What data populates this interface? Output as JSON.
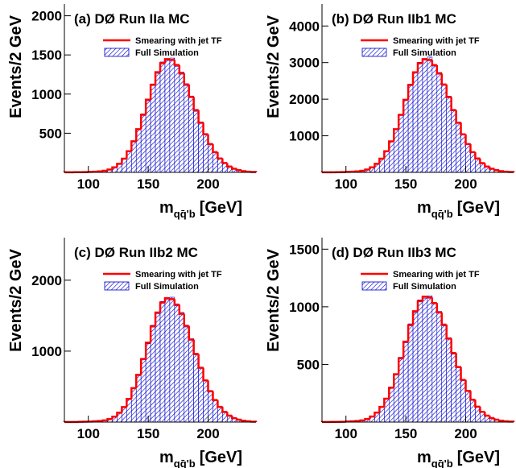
{
  "chart_data": [
    {
      "type": "histogram",
      "title": "(a) DØ Run IIa MC",
      "ylabel": "Events/2 GeV",
      "xlabel": {
        "main": "m",
        "sub": "qq̄'b",
        "unit": "[GeV]"
      },
      "bins": [
        80,
        84,
        88,
        92,
        96,
        100,
        104,
        108,
        112,
        116,
        120,
        124,
        128,
        132,
        136,
        140,
        144,
        148,
        152,
        156,
        160,
        164,
        168,
        172,
        176,
        180,
        184,
        188,
        192,
        196,
        200,
        204,
        208,
        212,
        216,
        220,
        224,
        228,
        232,
        236,
        240
      ],
      "series": [
        {
          "name": "Full Simulation",
          "color": "#0000cc",
          "style": "hatch",
          "values": [
            1,
            2,
            2,
            3,
            5,
            6,
            8,
            14,
            22,
            34,
            67,
            105,
            180,
            262,
            405,
            545,
            748,
            915,
            1130,
            1265,
            1410,
            1430,
            1460,
            1355,
            1280,
            1110,
            975,
            780,
            645,
            478,
            368,
            250,
            182,
            115,
            78,
            44,
            29,
            15,
            10,
            4
          ]
        },
        {
          "name": "Smearing with jet TF",
          "color": "#ff0000",
          "style": "step",
          "values": [
            1,
            1,
            2,
            3,
            4,
            6,
            9,
            13,
            20,
            36,
            64,
            109,
            175,
            270,
            396,
            552,
            735,
            928,
            1117,
            1279,
            1395,
            1447,
            1436,
            1372,
            1264,
            1124,
            963,
            796,
            634,
            487,
            361,
            258,
            178,
            119,
            75,
            46,
            28,
            16,
            9,
            5
          ]
        }
      ],
      "xlim": [
        80,
        240
      ],
      "xticks": [
        100,
        150,
        200
      ],
      "ylim": [
        0,
        2150
      ],
      "yticks": [
        500,
        1000,
        1500,
        2000
      ]
    },
    {
      "type": "histogram",
      "title": "(b) DØ Run IIb1 MC",
      "ylabel": "Events/2 GeV",
      "xlabel": {
        "main": "m",
        "sub": "qq̄'b",
        "unit": "[GeV]"
      },
      "bins": [
        80,
        84,
        88,
        92,
        96,
        100,
        104,
        108,
        112,
        116,
        120,
        124,
        128,
        132,
        136,
        140,
        144,
        148,
        152,
        156,
        160,
        164,
        168,
        172,
        176,
        180,
        184,
        188,
        192,
        196,
        200,
        204,
        208,
        212,
        216,
        220,
        224,
        228,
        232,
        236,
        240
      ],
      "series": [
        {
          "name": "Full Simulation",
          "color": "#0000cc",
          "style": "hatch",
          "values": [
            2,
            3,
            4,
            7,
            8,
            14,
            18,
            30,
            45,
            74,
            142,
            228,
            383,
            565,
            860,
            1165,
            1590,
            1962,
            2410,
            2710,
            3010,
            3070,
            3150,
            2905,
            2730,
            2380,
            2080,
            1680,
            1370,
            1025,
            785,
            540,
            388,
            248,
            165,
            95,
            62,
            33,
            20,
            10
          ]
        },
        {
          "name": "Smearing with jet TF",
          "color": "#ff0000",
          "style": "step",
          "values": [
            2,
            2,
            4,
            6,
            9,
            13,
            19,
            28,
            43,
            77,
            137,
            233,
            374,
            577,
            847,
            1180,
            1571,
            1984,
            2388,
            2734,
            2982,
            3094,
            3070,
            2933,
            2702,
            2403,
            2059,
            1702,
            1355,
            1041,
            772,
            552,
            381,
            254,
            160,
            98,
            60,
            34,
            19,
            11
          ]
        }
      ],
      "xlim": [
        80,
        240
      ],
      "xticks": [
        100,
        150,
        200
      ],
      "ylim": [
        0,
        4600
      ],
      "yticks": [
        1000,
        2000,
        3000,
        4000
      ]
    },
    {
      "type": "histogram",
      "title": "(c) DØ Run IIb2 MC",
      "ylabel": "Events/2 GeV",
      "xlabel": {
        "main": "m",
        "sub": "qq̄'b",
        "unit": "[GeV]"
      },
      "bins": [
        80,
        84,
        88,
        92,
        96,
        100,
        104,
        108,
        112,
        116,
        120,
        124,
        128,
        132,
        136,
        140,
        144,
        148,
        152,
        156,
        160,
        164,
        168,
        172,
        176,
        180,
        184,
        188,
        192,
        196,
        200,
        204,
        208,
        212,
        216,
        220,
        224,
        228,
        232,
        236,
        240
      ],
      "series": [
        {
          "name": "Full Simulation",
          "color": "#0000cc",
          "style": "hatch",
          "values": [
            1,
            2,
            3,
            4,
            6,
            7,
            10,
            17,
            25,
            41,
            80,
            128,
            218,
            318,
            488,
            655,
            900,
            1105,
            1365,
            1528,
            1700,
            1725,
            1760,
            1640,
            1545,
            1340,
            1175,
            948,
            775,
            580,
            442,
            305,
            220,
            140,
            93,
            54,
            35,
            18,
            12,
            5
          ]
        },
        {
          "name": "Smearing with jet TF",
          "color": "#ff0000",
          "style": "step",
          "values": [
            1,
            1,
            2,
            4,
            5,
            7,
            11,
            16,
            24,
            43,
            77,
            132,
            211,
            326,
            478,
            666,
            887,
            1120,
            1348,
            1544,
            1684,
            1747,
            1733,
            1656,
            1526,
            1357,
            1162,
            961,
            765,
            588,
            436,
            311,
            215,
            144,
            91,
            56,
            34,
            19,
            11,
            6
          ]
        }
      ],
      "xlim": [
        80,
        240
      ],
      "xticks": [
        100,
        150,
        200
      ],
      "ylim": [
        0,
        2600
      ],
      "yticks": [
        1000,
        2000
      ]
    },
    {
      "type": "histogram",
      "title": "(d) DØ Run IIb3 MC",
      "ylabel": "Events/2 GeV",
      "xlabel": {
        "main": "m",
        "sub": "qq̄'b",
        "unit": "[GeV]"
      },
      "bins": [
        80,
        84,
        88,
        92,
        96,
        100,
        104,
        108,
        112,
        116,
        120,
        124,
        128,
        132,
        136,
        140,
        144,
        148,
        152,
        156,
        160,
        164,
        168,
        172,
        176,
        180,
        184,
        188,
        192,
        196,
        200,
        204,
        208,
        212,
        216,
        220,
        224,
        228,
        232,
        236,
        240
      ],
      "series": [
        {
          "name": "Full Simulation",
          "color": "#0000cc",
          "style": "hatch",
          "values": [
            1,
            1,
            2,
            3,
            3,
            5,
            6,
            11,
            16,
            26,
            50,
            80,
            136,
            198,
            305,
            408,
            562,
            688,
            852,
            950,
            1060,
            1075,
            1095,
            1025,
            960,
            835,
            732,
            590,
            484,
            360,
            275,
            190,
            137,
            87,
            57,
            34,
            22,
            11,
            7,
            3
          ]
        },
        {
          "name": "Smearing with jet TF",
          "color": "#ff0000",
          "style": "step",
          "values": [
            1,
            1,
            2,
            2,
            3,
            5,
            7,
            10,
            15,
            27,
            48,
            82,
            132,
            203,
            298,
            415,
            553,
            698,
            840,
            962,
            1049,
            1088,
            1080,
            1032,
            951,
            845,
            724,
            599,
            477,
            366,
            271,
            194,
            134,
            89,
            56,
            35,
            21,
            12,
            7,
            4
          ]
        }
      ],
      "xlim": [
        80,
        240
      ],
      "xticks": [
        100,
        150,
        200
      ],
      "ylim": [
        0,
        1600
      ],
      "yticks": [
        500,
        1000,
        1500
      ]
    }
  ]
}
